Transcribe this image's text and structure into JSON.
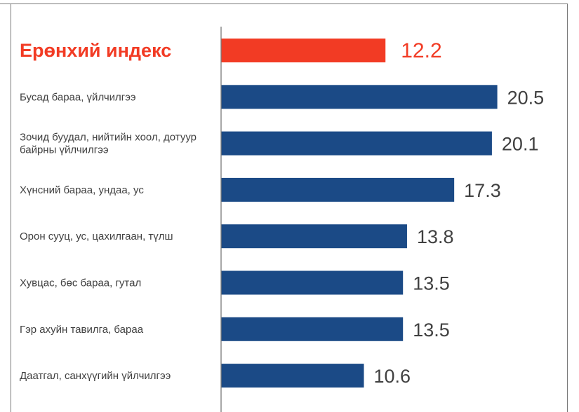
{
  "chart_data": {
    "type": "bar",
    "orientation": "horizontal",
    "categories": [
      "Ерөнхий индекс",
      "Бусад бараа, үйлчилгээ",
      "Зочид буудал, нийтийн хоол, дотуур байрны үйлчилгээ",
      "Хүнсний бараа, ундаа, ус",
      "Орон сууц, ус, цахилгаан, түлш",
      "Хувцас, бөс бараа, гутал",
      "Гэр ахуйн тавилга, бараа",
      "Даатгал, санхүүгийн үйлчилгээ"
    ],
    "category_lines": [
      [
        "Ерөнхий индекс"
      ],
      [
        "Бусад бараа, үйлчилгээ"
      ],
      [
        "Зочид буудал, нийтийн хоол, дотуур",
        "байрны үйлчилгээ"
      ],
      [
        "Хүнсний бараа, ундаа, ус"
      ],
      [
        "Орон сууц, ус, цахилгаан, түлш"
      ],
      [
        "Хувцас, бөс бараа, гутал"
      ],
      [
        "Гэр ахуйн тавилга, бараа"
      ],
      [
        "Даатгал, санхүүгийн үйлчилгээ"
      ]
    ],
    "values": [
      12.2,
      20.5,
      20.1,
      17.3,
      13.8,
      13.5,
      13.5,
      10.6
    ],
    "value_labels": [
      "12.2",
      "20.5",
      "20.1",
      "17.3",
      "13.8",
      "13.5",
      "13.5",
      "10.6"
    ],
    "highlight_index": 0,
    "colors": {
      "highlight": "#f23b24",
      "bar": "#1b4a86",
      "axis": "#7a7a7a",
      "text": "#404040"
    },
    "xlim": [
      0,
      22
    ],
    "grid": false,
    "legend": "none",
    "title": "",
    "xlabel": "",
    "ylabel": ""
  }
}
